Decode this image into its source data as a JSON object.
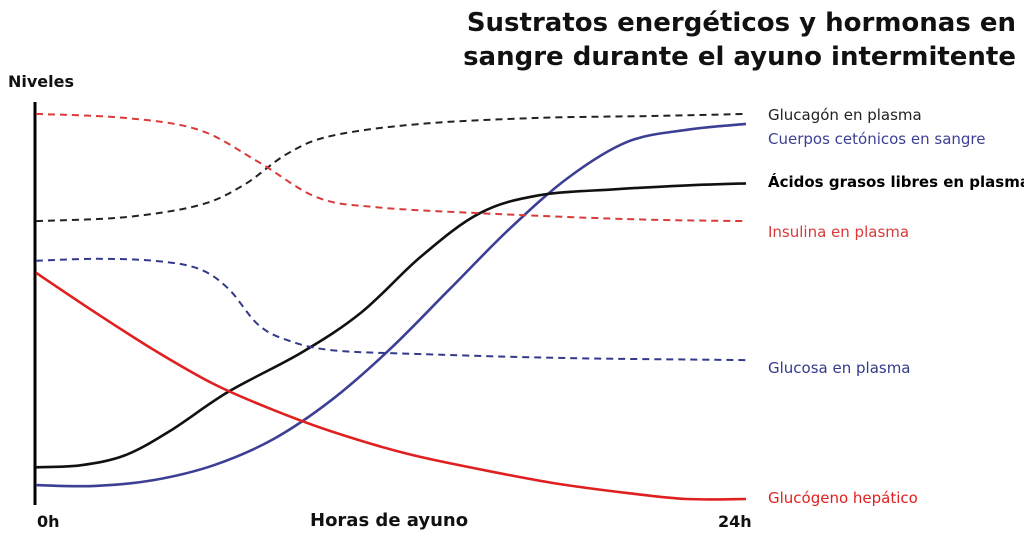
{
  "chart_data": {
    "type": "line",
    "title_lines": [
      "Sustratos energéticos y hormonas en",
      "sangre durante el ayuno intermitente"
    ],
    "ylabel": "Niveles",
    "xlabel": "Horas de ayuno",
    "x_ticks": [
      "0h",
      "24h"
    ],
    "xlim": [
      0,
      24
    ],
    "ylim": [
      0,
      100
    ],
    "grid": false,
    "series": [
      {
        "name": "Glucagón en plasma",
        "color": "#222222",
        "dash": true,
        "bold": false,
        "points": [
          [
            0,
            71
          ],
          [
            3,
            72
          ],
          [
            5.5,
            75
          ],
          [
            7,
            80
          ],
          [
            8.5,
            88
          ],
          [
            10,
            92.5
          ],
          [
            13,
            95.5
          ],
          [
            17,
            97
          ],
          [
            21,
            97.5
          ],
          [
            24,
            98
          ]
        ]
      },
      {
        "name": "Cuerpos cetónicos en sangre",
        "color": "#3c3f94",
        "dash": false,
        "bold": false,
        "points": [
          [
            0,
            4.5
          ],
          [
            2,
            4.3
          ],
          [
            4,
            5.8
          ],
          [
            6,
            9.5
          ],
          [
            8,
            16
          ],
          [
            10,
            26
          ],
          [
            12,
            39
          ],
          [
            14,
            54
          ],
          [
            16,
            69
          ],
          [
            18,
            82
          ],
          [
            20,
            91
          ],
          [
            22,
            94
          ],
          [
            24,
            95.5
          ]
        ]
      },
      {
        "name": "Ácidos grasos libres en plasma",
        "color": "#111111",
        "dash": false,
        "bold": true,
        "points": [
          [
            0,
            9
          ],
          [
            1.5,
            9.5
          ],
          [
            3,
            12
          ],
          [
            4.5,
            18
          ],
          [
            6.5,
            28
          ],
          [
            9,
            38
          ],
          [
            11,
            48
          ],
          [
            13,
            62
          ],
          [
            15,
            73
          ],
          [
            17,
            77.5
          ],
          [
            19.5,
            79
          ],
          [
            22,
            80
          ],
          [
            24,
            80.5
          ]
        ]
      },
      {
        "name": "Insulina en plasma",
        "color": "#d93a3a",
        "dash": true,
        "bold": false,
        "points": [
          [
            0,
            98
          ],
          [
            3,
            97
          ],
          [
            5.5,
            94
          ],
          [
            7.5,
            86
          ],
          [
            9.5,
            77
          ],
          [
            11.5,
            74.5
          ],
          [
            15,
            73
          ],
          [
            20,
            71.5
          ],
          [
            24,
            71
          ]
        ]
      },
      {
        "name": "Glucosa en plasma",
        "color": "#333a8a",
        "dash": true,
        "bold": false,
        "points": [
          [
            0,
            61
          ],
          [
            2,
            61.5
          ],
          [
            4,
            61
          ],
          [
            5.5,
            59
          ],
          [
            6.5,
            54
          ],
          [
            7.5,
            45
          ],
          [
            8.5,
            41
          ],
          [
            10,
            38.5
          ],
          [
            13,
            37.5
          ],
          [
            18,
            36.5
          ],
          [
            24,
            36
          ]
        ]
      },
      {
        "name": "Glucógeno hepático",
        "color": "#e02020",
        "dash": false,
        "bold": false,
        "points": [
          [
            0,
            58
          ],
          [
            2,
            48
          ],
          [
            4,
            38.5
          ],
          [
            6,
            30
          ],
          [
            8,
            23.5
          ],
          [
            10,
            18
          ],
          [
            12.5,
            12.5
          ],
          [
            15,
            8.5
          ],
          [
            17.5,
            5
          ],
          [
            20,
            2.5
          ],
          [
            22,
            1
          ],
          [
            24,
            1
          ]
        ]
      }
    ]
  }
}
